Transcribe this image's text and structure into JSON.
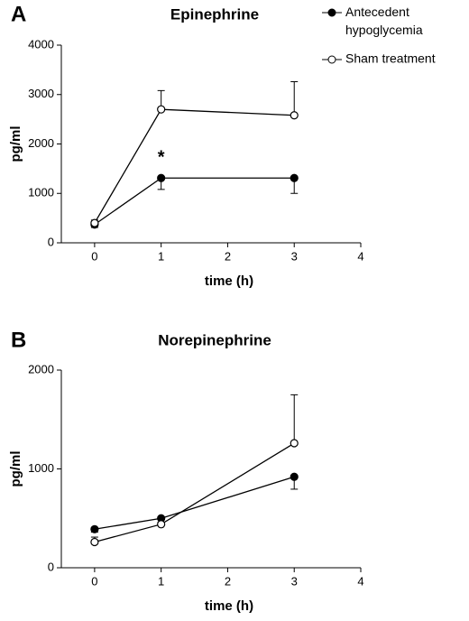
{
  "chart_data": [
    {
      "type": "line",
      "panel": "A",
      "title": "Epinephrine",
      "xlabel": "time (h)",
      "ylabel": "pg/ml",
      "x": [
        0,
        1,
        3
      ],
      "xlim": [
        -0.5,
        4
      ],
      "xticks": [
        0,
        1,
        2,
        3,
        4
      ],
      "ylim": [
        0,
        4000
      ],
      "yticks": [
        0,
        1000,
        2000,
        3000,
        4000
      ],
      "legend": "top-right",
      "series": [
        {
          "name": "Antecedent hypoglycemia",
          "marker": "filled",
          "color": "#000000",
          "values": [
            370,
            1310,
            1310
          ],
          "errors": [
            60,
            230,
            310
          ],
          "error_side": "below"
        },
        {
          "name": "Sham treatment",
          "marker": "open",
          "color": "#000000",
          "values": [
            400,
            2700,
            2580
          ],
          "errors": [
            60,
            380,
            680
          ],
          "error_side": "above"
        }
      ],
      "annotations": [
        {
          "text": "*",
          "x": 1,
          "series": 0
        }
      ]
    },
    {
      "type": "line",
      "panel": "B",
      "title": "Norepinephrine",
      "xlabel": "time (h)",
      "ylabel": "pg/ml",
      "x": [
        0,
        1,
        3
      ],
      "xlim": [
        -0.5,
        4
      ],
      "xticks": [
        0,
        1,
        2,
        3,
        4
      ],
      "ylim": [
        0,
        2000
      ],
      "yticks": [
        0,
        1000,
        2000
      ],
      "series": [
        {
          "marker": "filled",
          "color": "#000000",
          "values": [
            390,
            500,
            920
          ],
          "errors": [
            30,
            40,
            125
          ],
          "error_side": "below"
        },
        {
          "marker": "open",
          "color": "#000000",
          "values": [
            260,
            440,
            1260
          ],
          "errors": [
            50,
            20,
            490
          ],
          "error_side": "above"
        }
      ]
    }
  ]
}
